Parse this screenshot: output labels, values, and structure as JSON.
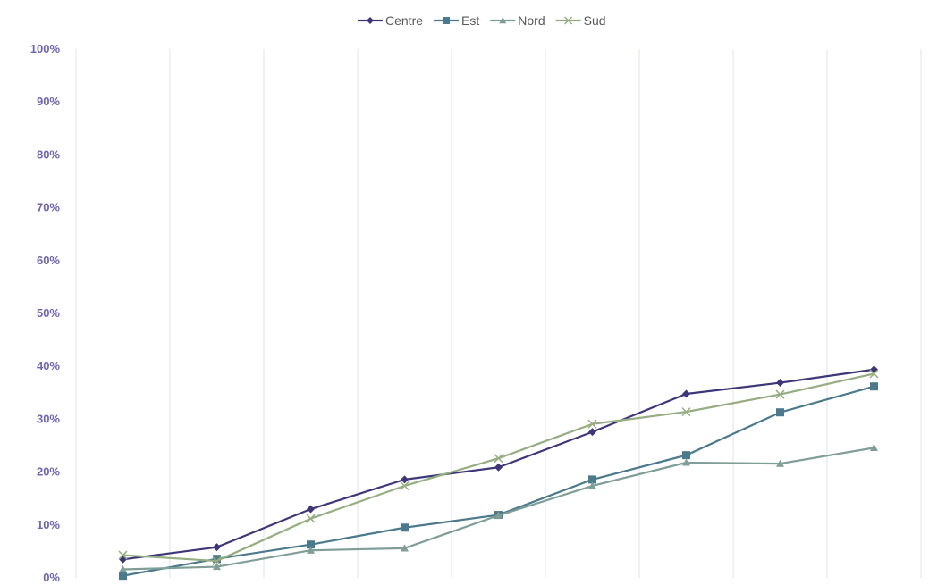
{
  "chart_data": {
    "type": "line",
    "title": "",
    "xlabel": "",
    "ylabel": "",
    "categories": [
      "",
      "",
      "",
      "",
      "",
      "",
      "",
      "",
      ""
    ],
    "ylim": [
      0,
      1
    ],
    "yticks": [
      0,
      0.1,
      0.2,
      0.3,
      0.4,
      0.5,
      0.6,
      0.7,
      0.8,
      0.9,
      1.0
    ],
    "ytick_labels": [
      "0%",
      "10%",
      "20%",
      "30%",
      "40%",
      "50%",
      "60%",
      "70%",
      "80%",
      "90%",
      "100%"
    ],
    "grid": "vertical",
    "legend_position": "top-center",
    "series": [
      {
        "name": "Centre",
        "marker": "diamond",
        "color": "#3d3679",
        "values": [
          0.035,
          0.058,
          0.13,
          0.186,
          0.209,
          0.276,
          0.348,
          0.369,
          0.394
        ]
      },
      {
        "name": "Est",
        "marker": "square",
        "color": "#4a7a8c",
        "values": [
          0.004,
          0.036,
          0.063,
          0.095,
          0.119,
          0.186,
          0.232,
          0.313,
          0.362
        ]
      },
      {
        "name": "Nord",
        "marker": "triangle",
        "color": "#7f9e97",
        "values": [
          0.016,
          0.021,
          0.052,
          0.056,
          0.118,
          0.174,
          0.218,
          0.216,
          0.246
        ]
      },
      {
        "name": "Sud",
        "marker": "x",
        "color": "#95ad80",
        "values": [
          0.043,
          0.032,
          0.112,
          0.174,
          0.226,
          0.291,
          0.314,
          0.347,
          0.386
        ]
      }
    ]
  },
  "colors": {
    "axis_label": "#6f66b0",
    "gridline": "#e1e0ec"
  }
}
